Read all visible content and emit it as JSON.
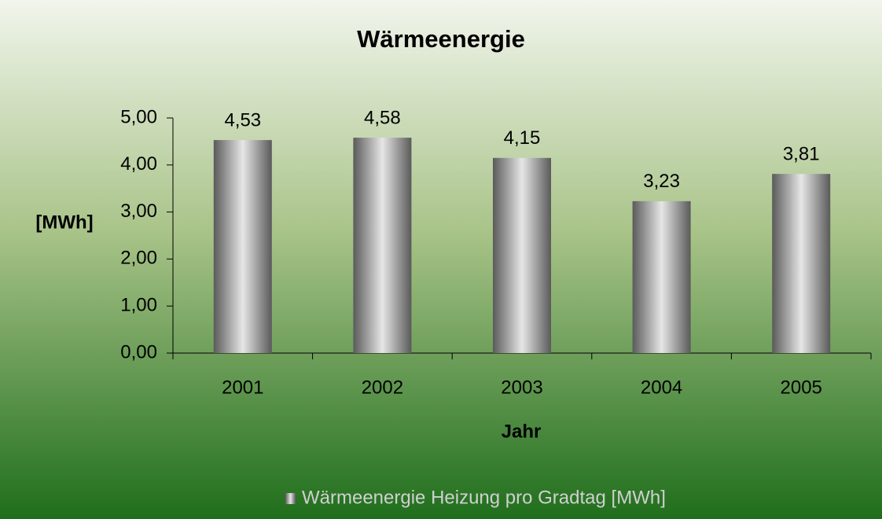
{
  "chart_data": {
    "type": "bar",
    "title": "Wärmeenergie",
    "categories": [
      "2001",
      "2002",
      "2003",
      "2004",
      "2005"
    ],
    "series": [
      {
        "name": "Wärmeenergie Heizung pro Gradtag [MWh]",
        "color": "#5a5a5a",
        "values": [
          4.53,
          4.58,
          4.15,
          3.23,
          3.81
        ],
        "value_labels": [
          "4,53",
          "4,58",
          "4,15",
          "3,23",
          "3,81"
        ]
      }
    ],
    "ylim": [
      0,
      5
    ],
    "yticks": [
      {
        "value": 0,
        "label": "0,00"
      },
      {
        "value": 1,
        "label": "1,00"
      },
      {
        "value": 2,
        "label": "2,00"
      },
      {
        "value": 3,
        "label": "3,00"
      },
      {
        "value": 4,
        "label": "4,00"
      },
      {
        "value": 5,
        "label": "5,00"
      }
    ],
    "y_label": "[MWh]",
    "x_label": "Jahr",
    "grid": false
  }
}
